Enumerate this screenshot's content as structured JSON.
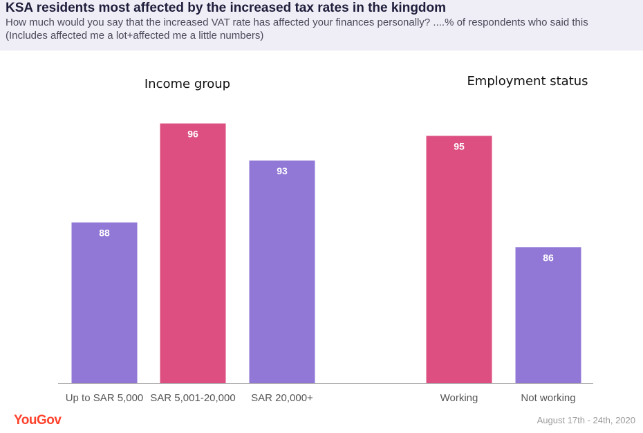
{
  "title": "KSA residents most affected by the increased tax rates in the kingdom",
  "subtitle": [
    "How much would you say that the increased VAT rate has affected your finances personally? ....% of respondents who said this",
    "(Includes affected me a lot+affected me a little numbers)"
  ],
  "brand": "YouGov",
  "footer_date": "August 17th - 24th, 2020",
  "colors": {
    "purple": "#9178d6",
    "pink": "#dc4f80",
    "axis": "#b0b0b0"
  },
  "chart_data": [
    {
      "type": "bar",
      "title": "Income group",
      "categories": [
        "Up to SAR 5,000",
        "SAR 5,001-20,000",
        "SAR 20,000+"
      ],
      "values": [
        88,
        96,
        93
      ],
      "colors": [
        "#9178d6",
        "#dc4f80",
        "#9178d6"
      ]
    },
    {
      "type": "bar",
      "title": "Employment status",
      "categories": [
        "Working",
        "Not working"
      ],
      "values": [
        95,
        86
      ],
      "colors": [
        "#dc4f80",
        "#9178d6"
      ]
    }
  ]
}
